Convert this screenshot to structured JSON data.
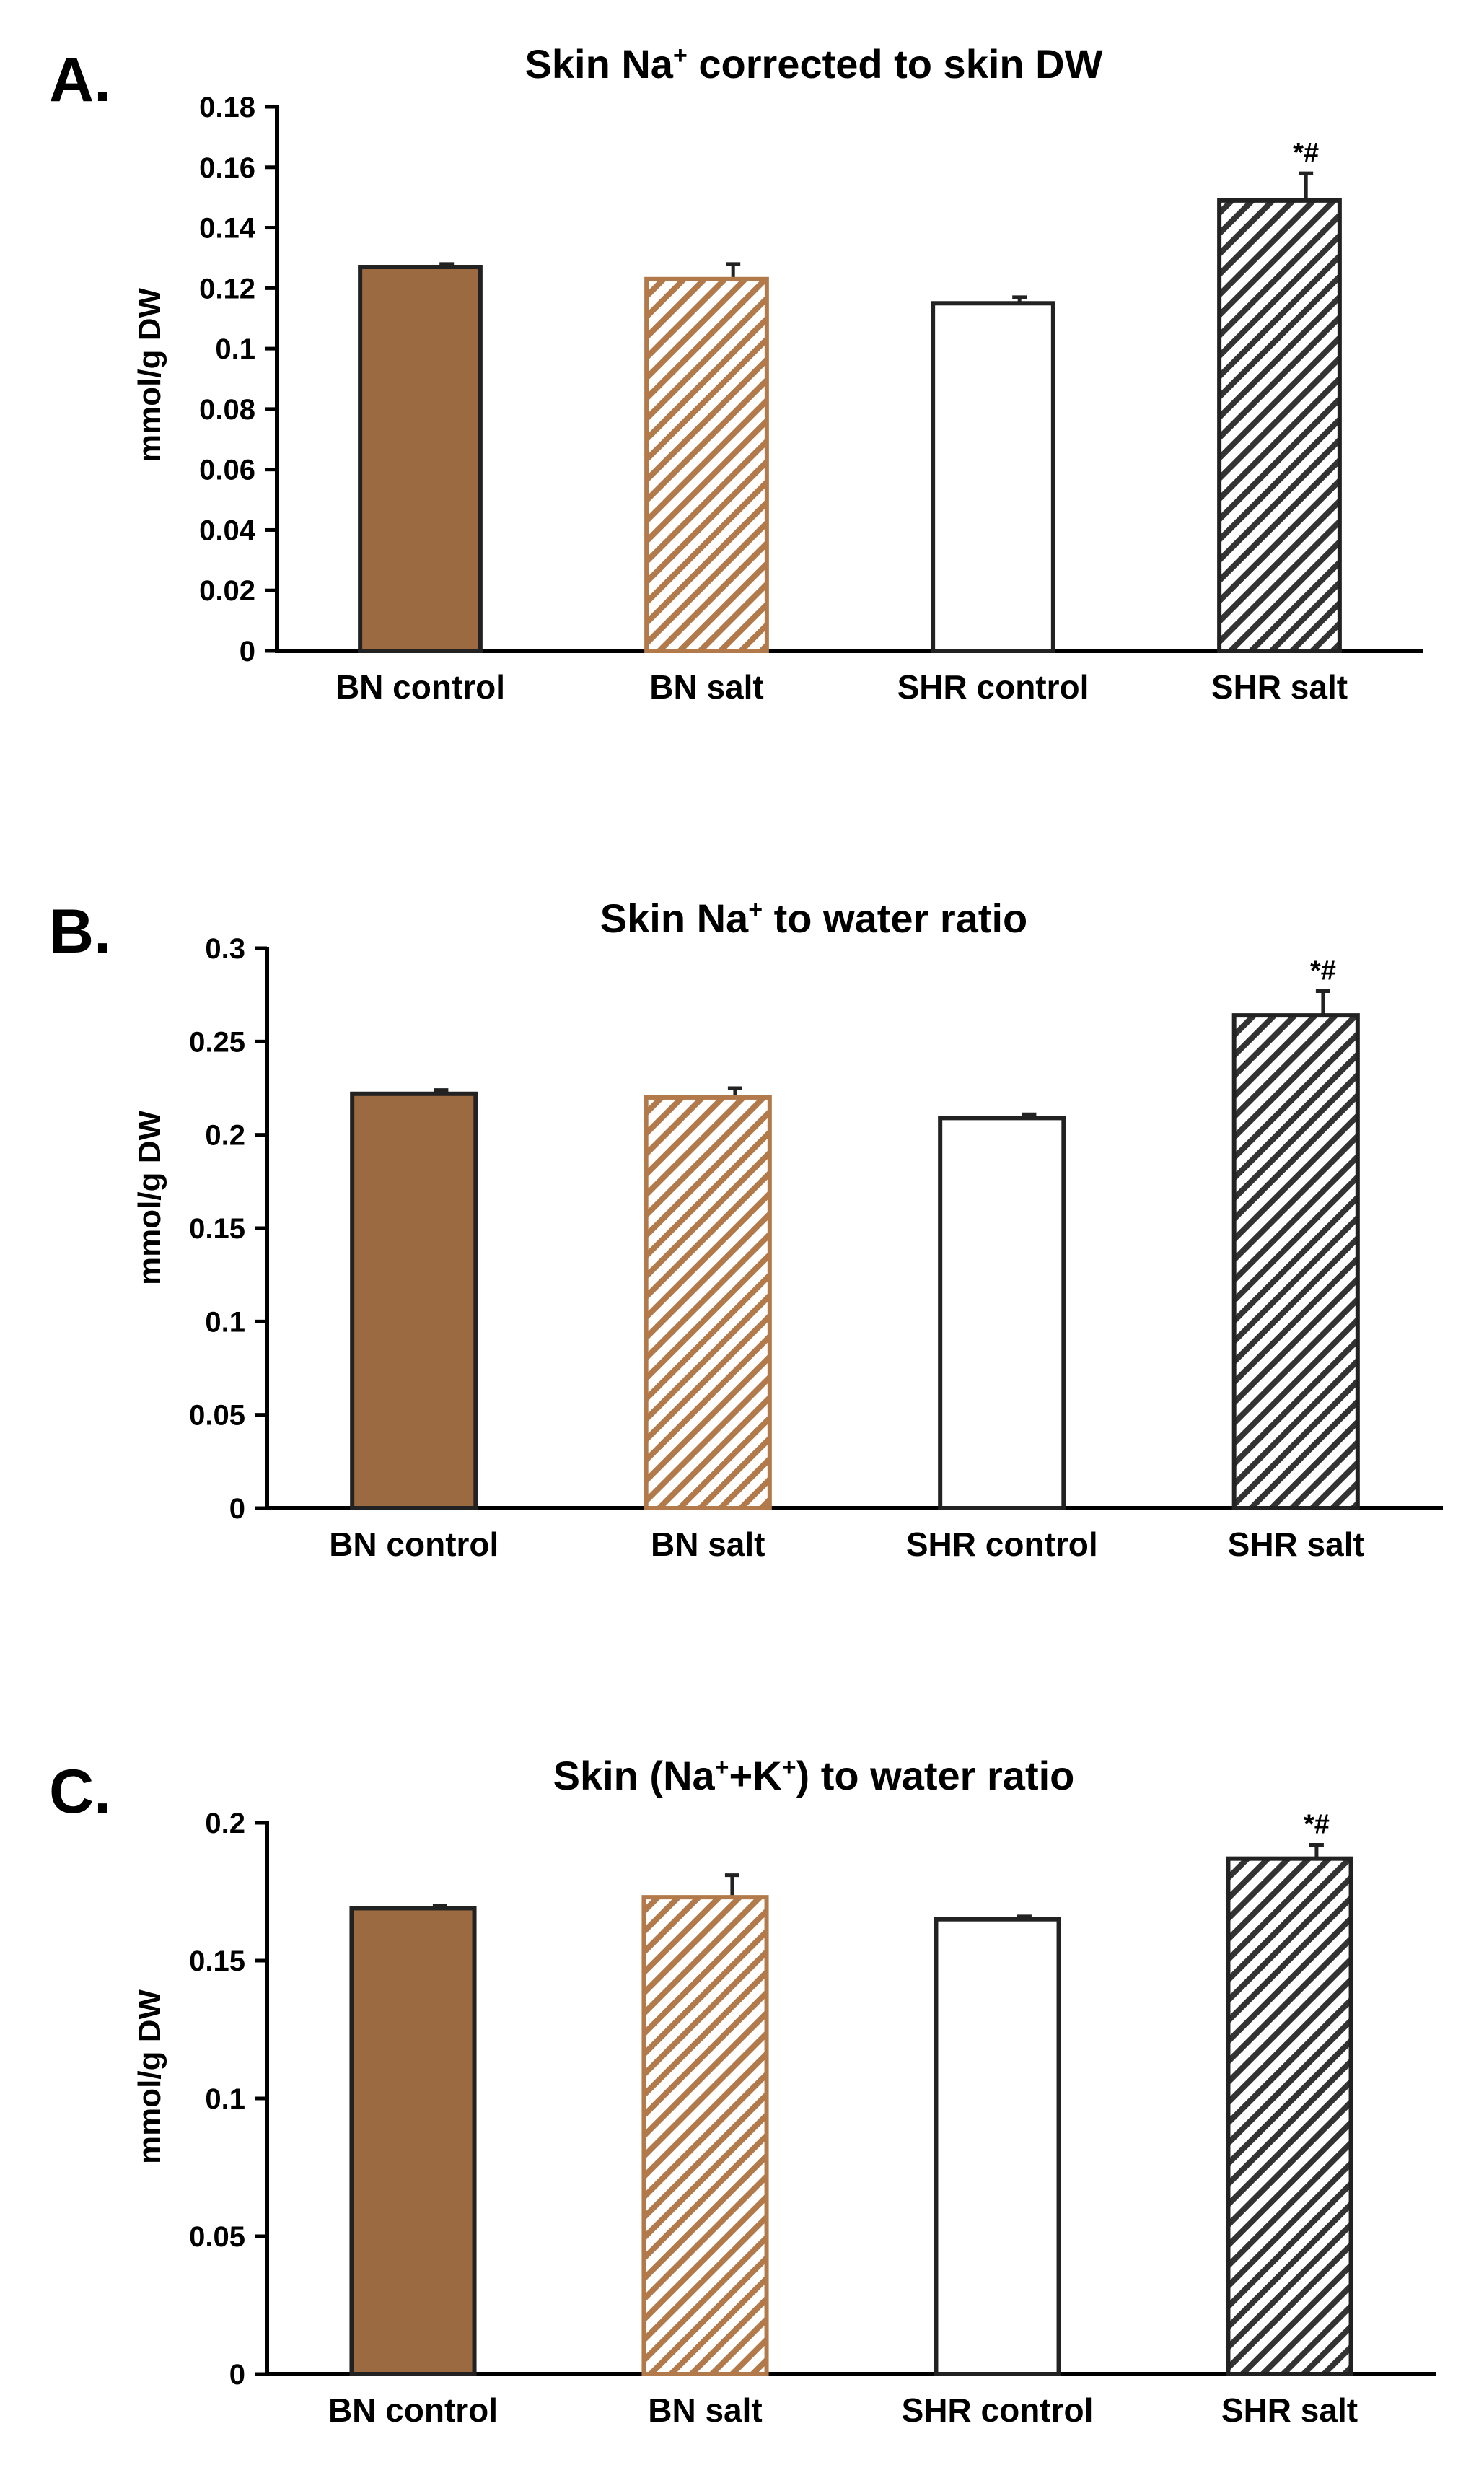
{
  "colors": {
    "brown": "#9b6a40",
    "stripe_brown": "#b27a4a",
    "dark": "#333333",
    "white": "#ffffff",
    "axis": "#000000"
  },
  "chart_data": [
    {
      "type": "bar",
      "panel_label": "A.",
      "title_main": "Skin Na",
      "title_sup": "+",
      "title_rest": " corrected to skin DW",
      "title": "Skin Na+ corrected to skin DW",
      "ylabel": "mmol/g DW",
      "xlabel": "",
      "ylim": [
        0,
        0.18
      ],
      "ticks": [
        "0",
        "0.02",
        "0.04",
        "0.06",
        "0.08",
        "0.1",
        "0.12",
        "0.14",
        "0.16",
        "0.18"
      ],
      "categories": [
        "BN control",
        "BN salt",
        "SHR control",
        "SHR salt"
      ],
      "values": [
        0.127,
        0.123,
        0.115,
        0.149
      ],
      "errors": [
        0.001,
        0.005,
        0.002,
        0.009
      ],
      "styles": [
        "solid-brown",
        "hatch-brown",
        "white",
        "hatch-dark"
      ],
      "annotations": [
        "",
        "",
        "",
        "*#"
      ]
    },
    {
      "type": "bar",
      "panel_label": "B.",
      "title_main": "Skin Na",
      "title_sup": "+",
      "title_rest": " to water ratio",
      "title": "Skin Na+ to water ratio",
      "ylabel": "mmol/g DW",
      "xlabel": "",
      "ylim": [
        0,
        0.3
      ],
      "ticks": [
        "0",
        "0.05",
        "0.1",
        "0.15",
        "0.2",
        "0.25",
        "0.3"
      ],
      "categories": [
        "BN control",
        "BN salt",
        "SHR control",
        "SHR salt"
      ],
      "values": [
        0.222,
        0.22,
        0.209,
        0.264
      ],
      "errors": [
        0.002,
        0.005,
        0.002,
        0.013
      ],
      "styles": [
        "solid-brown",
        "hatch-brown",
        "white",
        "hatch-dark"
      ],
      "annotations": [
        "",
        "",
        "",
        "*#"
      ]
    },
    {
      "type": "bar",
      "panel_label": "C.",
      "title_main": "Skin (Na",
      "title_sup": "+",
      "title_mid": "+K",
      "title_sup2": "+",
      "title_rest": ") to water ratio",
      "title": "Skin (Na+ +K+) to water ratio",
      "ylabel": "mmol/g DW",
      "xlabel": "",
      "ylim": [
        0,
        0.2
      ],
      "ticks": [
        "0",
        "0.05",
        "0.1",
        "0.15",
        "0.2"
      ],
      "categories": [
        "BN control",
        "BN salt",
        "SHR control",
        "SHR salt"
      ],
      "values": [
        0.169,
        0.173,
        0.165,
        0.187
      ],
      "errors": [
        0.001,
        0.008,
        0.001,
        0.005
      ],
      "styles": [
        "solid-brown",
        "hatch-brown",
        "white",
        "hatch-dark"
      ],
      "annotations": [
        "",
        "",
        "",
        "*#"
      ]
    }
  ]
}
